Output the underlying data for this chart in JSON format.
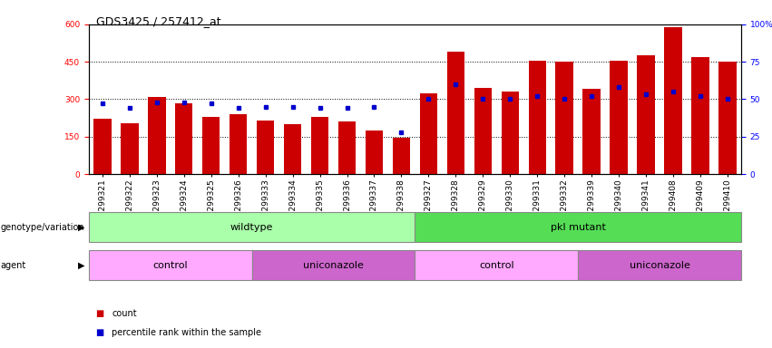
{
  "title": "GDS3425 / 257412_at",
  "samples": [
    "GSM299321",
    "GSM299322",
    "GSM299323",
    "GSM299324",
    "GSM299325",
    "GSM299326",
    "GSM299333",
    "GSM299334",
    "GSM299335",
    "GSM299336",
    "GSM299337",
    "GSM299338",
    "GSM299327",
    "GSM299328",
    "GSM299329",
    "GSM299330",
    "GSM299331",
    "GSM299332",
    "GSM299339",
    "GSM299340",
    "GSM299341",
    "GSM299408",
    "GSM299409",
    "GSM299410"
  ],
  "counts": [
    220,
    205,
    310,
    285,
    230,
    240,
    215,
    200,
    230,
    210,
    175,
    145,
    325,
    490,
    345,
    330,
    455,
    450,
    340,
    455,
    475,
    590,
    470,
    450
  ],
  "percentile_ranks": [
    47,
    44,
    48,
    48,
    47,
    44,
    45,
    45,
    44,
    44,
    45,
    28,
    50,
    60,
    50,
    50,
    52,
    50,
    52,
    58,
    53,
    55,
    52,
    50
  ],
  "ylim_left": [
    0,
    600
  ],
  "ylim_right": [
    0,
    100
  ],
  "yticks_left": [
    0,
    150,
    300,
    450,
    600
  ],
  "yticks_right": [
    0,
    25,
    50,
    75,
    100
  ],
  "bar_color": "#cc0000",
  "dot_color": "#0000cc",
  "genotype_groups": [
    {
      "label": "wildtype",
      "start": 0,
      "end": 12,
      "color": "#aaffaa"
    },
    {
      "label": "pkl mutant",
      "start": 12,
      "end": 24,
      "color": "#55dd55"
    }
  ],
  "agent_groups": [
    {
      "label": "control",
      "start": 0,
      "end": 6,
      "color": "#ffaaff"
    },
    {
      "label": "uniconazole",
      "start": 6,
      "end": 12,
      "color": "#cc66cc"
    },
    {
      "label": "control",
      "start": 12,
      "end": 18,
      "color": "#ffaaff"
    },
    {
      "label": "uniconazole",
      "start": 18,
      "end": 24,
      "color": "#cc66cc"
    }
  ],
  "legend_items": [
    {
      "label": "count",
      "color": "#cc0000"
    },
    {
      "label": "percentile rank within the sample",
      "color": "#0000cc"
    }
  ],
  "bar_width": 0.65,
  "background_color": "#ffffff",
  "plot_bg_color": "#ffffff",
  "title_fontsize": 9,
  "tick_fontsize": 6.5,
  "label_fontsize": 8,
  "band_fontsize": 8
}
